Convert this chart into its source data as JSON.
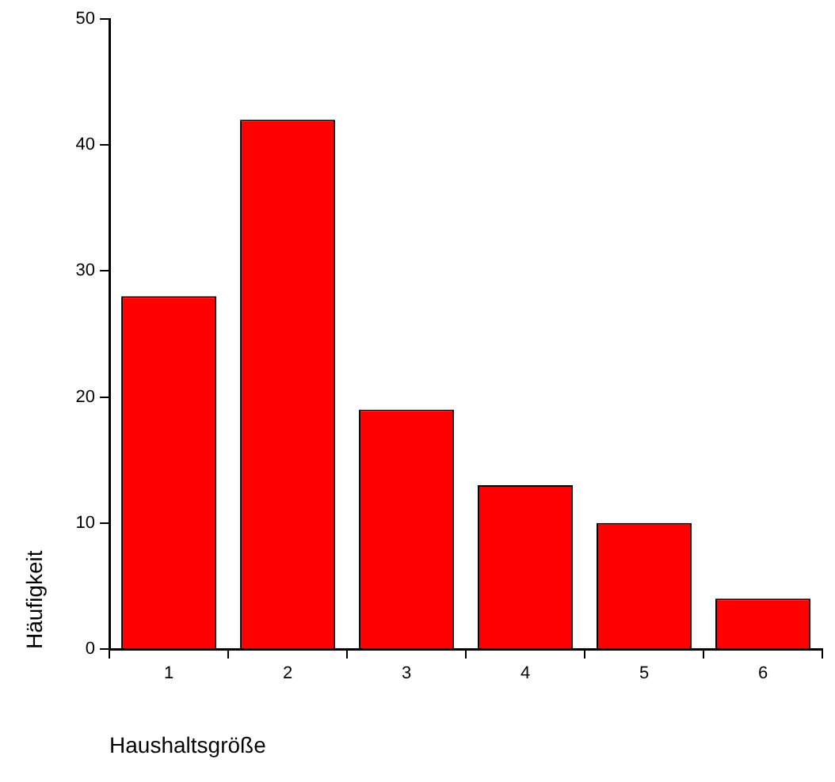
{
  "chart_data": {
    "type": "bar",
    "xlabel": "Haushaltsgröße",
    "ylabel": "Häufigkeit",
    "categories": [
      "1",
      "2",
      "3",
      "4",
      "5",
      "6"
    ],
    "values": [
      28,
      42,
      19,
      13,
      10,
      4
    ],
    "color": "#ff0000",
    "ylim": [
      0,
      50
    ],
    "yticks": [
      0,
      10,
      20,
      30,
      40,
      50
    ],
    "grid": false,
    "legend": false
  }
}
